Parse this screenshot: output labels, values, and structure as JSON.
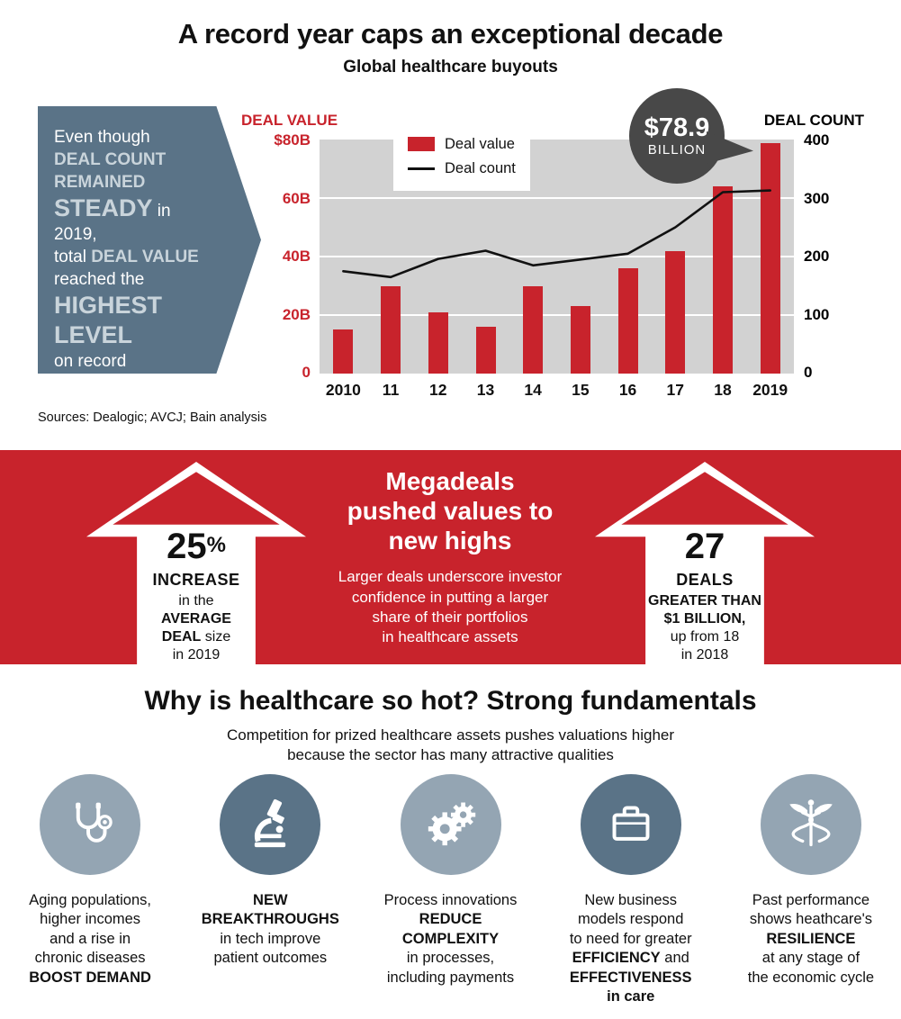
{
  "colors": {
    "red": "#c8232c",
    "slate_blue": "#5a7387",
    "light_slate": "#94a5b3",
    "chart_background": "#d2d2d2",
    "bubble_gray": "#484848",
    "callout_highlight": "#c9d4db"
  },
  "header": {
    "title": "A record year caps an exceptional decade",
    "subtitle": "Global healthcare buyouts"
  },
  "callout": {
    "l1": "Even though",
    "l2": "DEAL COUNT",
    "l3": "REMAINED",
    "l4a": "STEADY",
    "l4b": " in 2019,",
    "l5a": "total ",
    "l5b": "DEAL VALUE",
    "l6": "reached the",
    "l7": "HIGHEST",
    "l8": "LEVEL",
    "l9": "on record"
  },
  "chart": {
    "left_axis_title": "DEAL VALUE",
    "right_axis_title": "DEAL COUNT",
    "legend": [
      {
        "label": "Deal value",
        "swatch": "red-square"
      },
      {
        "label": "Deal count",
        "swatch": "black-line"
      }
    ],
    "bubble": {
      "value": "$78.9",
      "unit": "BILLION"
    },
    "sources": "Sources: Dealogic; AVCJ; Bain analysis"
  },
  "chart_data": {
    "type": "bar",
    "title": "Global healthcare buyouts",
    "categories": [
      "2010",
      "11",
      "12",
      "13",
      "14",
      "15",
      "16",
      "17",
      "18",
      "2019"
    ],
    "series": [
      {
        "name": "Deal value",
        "type": "bar",
        "axis": "left",
        "unit": "$B",
        "values": [
          15,
          30,
          21,
          16,
          30,
          23,
          36,
          42,
          64,
          78.9
        ]
      },
      {
        "name": "Deal count",
        "type": "line",
        "axis": "right",
        "values": [
          175,
          165,
          196,
          210,
          185,
          195,
          205,
          250,
          310,
          313
        ]
      }
    ],
    "left_axis": {
      "title": "DEAL VALUE",
      "min": 0,
      "max": 80,
      "ticks": [
        "$80B",
        "60B",
        "40B",
        "20B",
        "0"
      ]
    },
    "right_axis": {
      "title": "DEAL COUNT",
      "min": 0,
      "max": 400,
      "ticks": [
        "400",
        "300",
        "200",
        "100",
        "0"
      ]
    },
    "annotation": {
      "text": "$78.9 BILLION",
      "target": "2019"
    },
    "grid": true,
    "legend_position": "top-left"
  },
  "band": {
    "left_arrow": {
      "big": "25",
      "pct": "%",
      "l2": "INCREASE",
      "l3": "in the",
      "l4": "AVERAGE",
      "l5a": "DEAL",
      "l5b": " size",
      "l6": "in 2019"
    },
    "heading_lines": [
      "Megadeals",
      "pushed values to",
      "new highs"
    ],
    "body_lines": [
      "Larger deals underscore investor",
      "confidence in putting a larger",
      "share of their portfolios",
      "in healthcare assets"
    ],
    "right_arrow": {
      "big": "27",
      "l2": "DEALS",
      "l3": "GREATER THAN",
      "l4": "$1 BILLION,",
      "l5": "up from 18",
      "l6": "in 2018"
    }
  },
  "fundamentals": {
    "heading": "Why is healthcare so hot? Strong fundamentals",
    "sub1": "Competition for prized healthcare assets pushes valuations higher",
    "sub2": "because the sector has many attractive qualities",
    "cards": [
      {
        "icon": "stethoscope-icon",
        "l1": "Aging populations,",
        "l2": "higher incomes",
        "l3": "and a rise in",
        "l4": "chronic diseases",
        "l5": "BOOST DEMAND"
      },
      {
        "icon": "microscope-icon",
        "l1": "NEW",
        "l2": "BREAKTHROUGHS",
        "l3": "in tech improve",
        "l4": "patient outcomes"
      },
      {
        "icon": "gears-icon",
        "l1": "Process innovations",
        "l2": "REDUCE",
        "l3": "COMPLEXITY",
        "l4": "in processes,",
        "l5": "including payments"
      },
      {
        "icon": "briefcase-icon",
        "l1": "New business",
        "l2": "models respond",
        "l3": "to need for greater",
        "l4a": "EFFICIENCY",
        "l4b": " and",
        "l5": "EFFECTIVENESS",
        "l6": "in care"
      },
      {
        "icon": "caduceus-icon",
        "l1": "Past performance",
        "l2": "shows heathcare's",
        "l3": "RESILIENCE",
        "l4": "at any stage of",
        "l5": "the economic cycle"
      }
    ]
  }
}
